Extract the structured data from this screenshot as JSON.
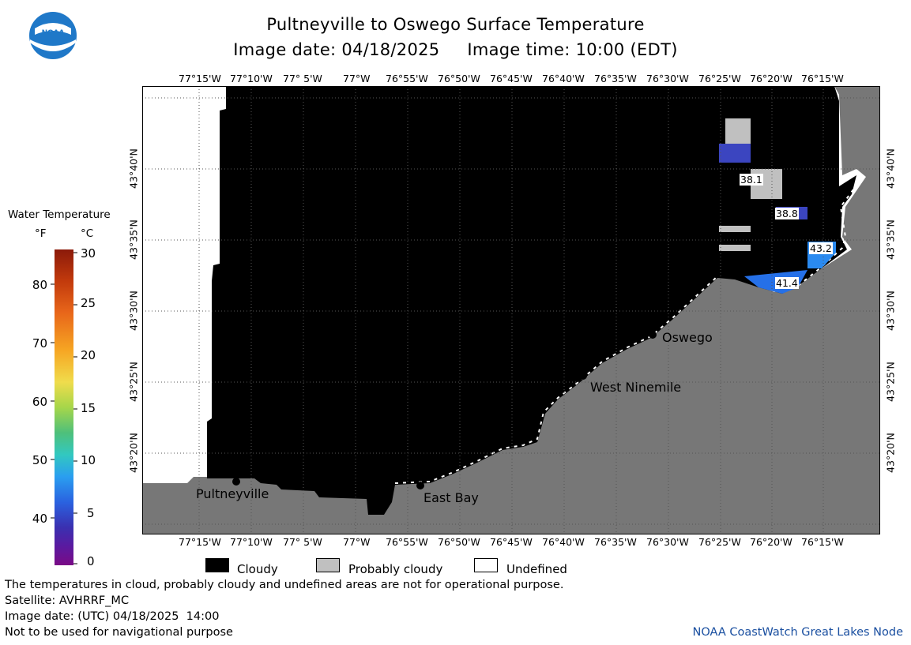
{
  "header": {
    "title": "Pultneyville to Oswego Surface Temperature",
    "subtitle": "Image date: 04/18/2025     Image time: 10:00 (EDT)"
  },
  "logo": {
    "text": "NOAA"
  },
  "map": {
    "longitude_labels": [
      "77°15'W",
      "77°10'W",
      "77° 5'W",
      "77°W",
      "76°55'W",
      "76°50'W",
      "76°45'W",
      "76°40'W",
      "76°35'W",
      "76°30'W",
      "76°25'W",
      "76°20'W",
      "76°15'W"
    ],
    "latitude_labels": [
      "43°40'N",
      "43°35'N",
      "43°30'N",
      "43°25'N",
      "43°20'N"
    ],
    "places": [
      "Oswego",
      "West Ninemile",
      "Pultneyville",
      "East Bay"
    ],
    "temperature_labels": [
      "38.1",
      "38.8",
      "43.2",
      "41.4"
    ],
    "colors": {
      "cloudy": "#000000",
      "probably_cloudy": "#c0c0c0",
      "land": "#777777",
      "undefined": "#ffffff"
    }
  },
  "colorbar": {
    "title": "Water Temperature",
    "unit_f": "°F",
    "unit_c": "°C",
    "f_ticks": [
      "80",
      "70",
      "60",
      "50",
      "40"
    ],
    "c_ticks": [
      "30",
      "25",
      "20",
      "15",
      "10",
      "5",
      "0"
    ]
  },
  "legend": {
    "cloudy": "Cloudy",
    "probably_cloudy": "Probably cloudy",
    "undefined": "Undefined"
  },
  "footer": {
    "note": "The temperatures in cloud, probably cloudy and undefined areas are not for operational purpose.",
    "satellite": "Satellite: AVHRRF_MC",
    "utc_date": "Image date: (UTC) 04/18/2025  14:00",
    "nav_warning": "Not to be used for navigational purpose",
    "credit": "NOAA CoastWatch Great Lakes Node"
  }
}
